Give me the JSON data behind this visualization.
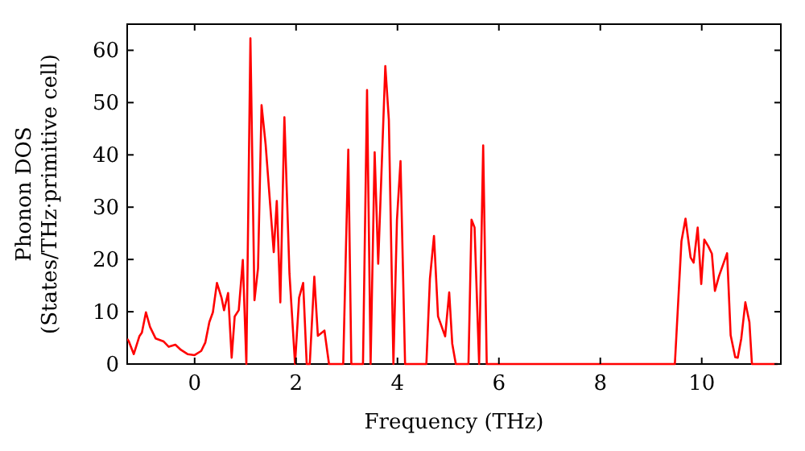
{
  "chart_data": {
    "type": "line",
    "xlabel": "Frequency (THz)",
    "ylabel": "Phonon DOS\n(States/THz·primitive cell)",
    "xlim": [
      -1.33,
      11.56
    ],
    "ylim": [
      0,
      65
    ],
    "xticks": [
      0,
      2,
      4,
      6,
      8,
      10
    ],
    "yticks": [
      0,
      10,
      20,
      30,
      40,
      50,
      60
    ],
    "grid": false,
    "marker": "none",
    "line_style": "solid",
    "series": [
      {
        "color": "#ff0000",
        "x": [
          -1.33,
          -1.3,
          -1.2,
          -1.09,
          -1.04,
          -0.96,
          -0.88,
          -0.77,
          -0.61,
          -0.51,
          -0.38,
          -0.27,
          -0.14,
          0,
          0.13,
          0.21,
          0.29,
          0.36,
          0.44,
          0.53,
          0.58,
          0.66,
          0.73,
          0.79,
          0.87,
          0.95,
          1.02,
          1.1,
          1.18,
          1.25,
          1.32,
          1.4,
          1.56,
          1.62,
          1.69,
          1.77,
          1.87,
          1.98,
          2.06,
          2.14,
          2.21,
          2.27,
          2.36,
          2.43,
          2.56,
          2.65,
          2.93,
          3.03,
          3.09,
          3.32,
          3.4,
          3.47,
          3.55,
          3.62,
          3.76,
          3.83,
          3.92,
          3.99,
          4.06,
          4.15,
          4.57,
          4.64,
          4.72,
          4.8,
          4.94,
          5.02,
          5.08,
          5.15,
          5.4,
          5.46,
          5.52,
          5.61,
          5.69,
          5.76,
          9.47,
          9.6,
          9.68,
          9.78,
          9.84,
          9.92,
          9.99,
          10.05,
          10.13,
          10.2,
          10.26,
          10.34,
          10.5,
          10.57,
          10.66,
          10.71,
          10.78,
          10.86,
          10.94,
          10.99,
          11.5
        ],
        "values": [
          4.8,
          4.4,
          1.9,
          5.3,
          6,
          9.9,
          7.1,
          4.9,
          4.3,
          3.3,
          3.7,
          2.7,
          1.9,
          1.7,
          2.5,
          4.1,
          8,
          9.9,
          15.5,
          12.7,
          10.3,
          13.6,
          1.2,
          9.1,
          10.3,
          19.9,
          0,
          62.3,
          12.2,
          18.3,
          49.5,
          42,
          21.4,
          31.2,
          11.8,
          47.2,
          17.3,
          0,
          12.7,
          15.5,
          0,
          0,
          16.7,
          5.4,
          6.4,
          0,
          0,
          41,
          0,
          0,
          52.4,
          0,
          40.5,
          19.2,
          57,
          46.7,
          0,
          27.6,
          38.8,
          0,
          0,
          16.3,
          24.5,
          9.1,
          5.3,
          13.7,
          3.9,
          0,
          0,
          27.6,
          26.1,
          0,
          41.8,
          0,
          0,
          23.5,
          27.8,
          20.4,
          19.4,
          26.1,
          15.3,
          23.8,
          22.5,
          21.1,
          14,
          16.8,
          21.2,
          5.5,
          1.3,
          1.2,
          4.9,
          11.8,
          8,
          0,
          0
        ]
      }
    ]
  }
}
